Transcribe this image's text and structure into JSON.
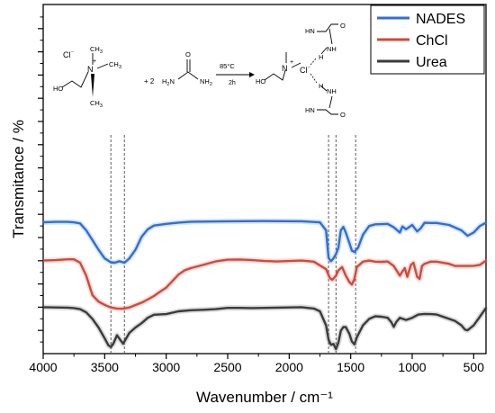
{
  "chart_data": {
    "type": "line",
    "xlabel": "Wavenumber / cm⁻¹",
    "ylabel": "Transmitance / %",
    "xlim": [
      4000,
      400
    ],
    "x_reversed": true,
    "x_ticks": [
      4000,
      3500,
      3000,
      2500,
      2000,
      1500,
      1000,
      500
    ],
    "x_tick_labels": [
      "4000",
      "3500",
      "3000",
      "2500",
      "2000",
      "1500",
      "1000",
      "500"
    ],
    "ylim": [
      0,
      100
    ],
    "y_tick_labels_shown": false,
    "legend_position": "top-right",
    "reference_lines_x": [
      3450,
      3340,
      1680,
      1620,
      1460
    ],
    "series": [
      {
        "name": "NADES",
        "color": "#2f6fd6",
        "points": [
          [
            4000,
            58.7
          ],
          [
            3900,
            58.9
          ],
          [
            3800,
            58.9
          ],
          [
            3750,
            58.7
          ],
          [
            3700,
            58.2
          ],
          [
            3650,
            55.0
          ],
          [
            3600,
            50.5
          ],
          [
            3550,
            46.0
          ],
          [
            3500,
            42.0
          ],
          [
            3450,
            40.2
          ],
          [
            3420,
            40.0
          ],
          [
            3380,
            40.7
          ],
          [
            3340,
            40.0
          ],
          [
            3300,
            42.0
          ],
          [
            3250,
            46.0
          ],
          [
            3200,
            52.0
          ],
          [
            3150,
            55.5
          ],
          [
            3100,
            57.2
          ],
          [
            3000,
            58.0
          ],
          [
            2900,
            58.6
          ],
          [
            2800,
            59.0
          ],
          [
            2500,
            59.2
          ],
          [
            2200,
            59.3
          ],
          [
            1900,
            59.2
          ],
          [
            1750,
            58.7
          ],
          [
            1700,
            55.0
          ],
          [
            1680,
            42.2
          ],
          [
            1660,
            40.7
          ],
          [
            1640,
            42.0
          ],
          [
            1620,
            44.0
          ],
          [
            1600,
            47.0
          ],
          [
            1580,
            55.0
          ],
          [
            1560,
            56.6
          ],
          [
            1540,
            54.0
          ],
          [
            1510,
            49.0
          ],
          [
            1490,
            45.6
          ],
          [
            1470,
            45.0
          ],
          [
            1440,
            47.0
          ],
          [
            1400,
            53.0
          ],
          [
            1350,
            57.0
          ],
          [
            1300,
            57.8
          ],
          [
            1200,
            58.0
          ],
          [
            1150,
            56.4
          ],
          [
            1100,
            54.0
          ],
          [
            1080,
            56.8
          ],
          [
            1050,
            55.5
          ],
          [
            1000,
            57.5
          ],
          [
            960,
            54.5
          ],
          [
            930,
            56.0
          ],
          [
            900,
            58.5
          ],
          [
            850,
            58.4
          ],
          [
            800,
            58.4
          ],
          [
            700,
            57.5
          ],
          [
            600,
            55.0
          ],
          [
            550,
            52.5
          ],
          [
            500,
            54.0
          ],
          [
            450,
            57.0
          ],
          [
            400,
            58.5
          ]
        ]
      },
      {
        "name": "ChCl",
        "color": "#d04a3c",
        "points": [
          [
            4000,
            41.0
          ],
          [
            3900,
            41.2
          ],
          [
            3800,
            41.6
          ],
          [
            3750,
            41.6
          ],
          [
            3700,
            40.0
          ],
          [
            3650,
            34.0
          ],
          [
            3600,
            25.0
          ],
          [
            3550,
            22.0
          ],
          [
            3500,
            20.5
          ],
          [
            3450,
            19.3
          ],
          [
            3400,
            18.8
          ],
          [
            3350,
            18.7
          ],
          [
            3300,
            19.3
          ],
          [
            3250,
            20.4
          ],
          [
            3200,
            21.5
          ],
          [
            3150,
            23.0
          ],
          [
            3100,
            24.6
          ],
          [
            3050,
            26.6
          ],
          [
            3000,
            28.5
          ],
          [
            2950,
            31.5
          ],
          [
            2900,
            34.5
          ],
          [
            2850,
            36.5
          ],
          [
            2800,
            37.5
          ],
          [
            2700,
            39.0
          ],
          [
            2600,
            40.6
          ],
          [
            2500,
            41.4
          ],
          [
            2400,
            41.5
          ],
          [
            2300,
            41.2
          ],
          [
            2200,
            40.8
          ],
          [
            2100,
            40.6
          ],
          [
            2000,
            40.8
          ],
          [
            1900,
            41.0
          ],
          [
            1800,
            40.5
          ],
          [
            1700,
            37.0
          ],
          [
            1670,
            33.0
          ],
          [
            1650,
            32.1
          ],
          [
            1620,
            34.0
          ],
          [
            1600,
            36.5
          ],
          [
            1570,
            38.0
          ],
          [
            1540,
            34.0
          ],
          [
            1510,
            31.0
          ],
          [
            1490,
            29.9
          ],
          [
            1470,
            32.5
          ],
          [
            1450,
            38.0
          ],
          [
            1400,
            40.5
          ],
          [
            1350,
            41.0
          ],
          [
            1300,
            40.5
          ],
          [
            1250,
            40.4
          ],
          [
            1200,
            40.6
          ],
          [
            1150,
            38.5
          ],
          [
            1100,
            34.0
          ],
          [
            1080,
            36.0
          ],
          [
            1060,
            37.5
          ],
          [
            1040,
            33.5
          ],
          [
            1010,
            39.0
          ],
          [
            990,
            40.0
          ],
          [
            960,
            33.5
          ],
          [
            940,
            32.5
          ],
          [
            920,
            38.5
          ],
          [
            900,
            39.5
          ],
          [
            850,
            40.5
          ],
          [
            800,
            40.5
          ],
          [
            700,
            39.5
          ],
          [
            650,
            38.5
          ],
          [
            600,
            38.5
          ],
          [
            550,
            38.5
          ],
          [
            500,
            38.6
          ],
          [
            450,
            39.0
          ],
          [
            400,
            41.0
          ]
        ]
      },
      {
        "name": "Urea",
        "color": "#3b3b3b",
        "points": [
          [
            4000,
            19.4
          ],
          [
            3900,
            19.3
          ],
          [
            3800,
            19.2
          ],
          [
            3750,
            19.0
          ],
          [
            3700,
            18.5
          ],
          [
            3650,
            17.0
          ],
          [
            3600,
            14.0
          ],
          [
            3550,
            10.0
          ],
          [
            3500,
            5.0
          ],
          [
            3470,
            1.8
          ],
          [
            3450,
            1.0
          ],
          [
            3430,
            2.5
          ],
          [
            3400,
            6.4
          ],
          [
            3370,
            4.0
          ],
          [
            3350,
            2.5
          ],
          [
            3330,
            4.5
          ],
          [
            3300,
            7.5
          ],
          [
            3250,
            10.0
          ],
          [
            3200,
            12.0
          ],
          [
            3150,
            14.5
          ],
          [
            3100,
            15.9
          ],
          [
            3000,
            16.2
          ],
          [
            2900,
            17.5
          ],
          [
            2800,
            18.0
          ],
          [
            2700,
            18.2
          ],
          [
            2600,
            18.5
          ],
          [
            2500,
            19.1
          ],
          [
            2400,
            19.1
          ],
          [
            2300,
            19.0
          ],
          [
            2200,
            19.1
          ],
          [
            2000,
            19.3
          ],
          [
            1900,
            19.4
          ],
          [
            1800,
            18.8
          ],
          [
            1750,
            17.5
          ],
          [
            1700,
            11.0
          ],
          [
            1680,
            4.3
          ],
          [
            1660,
            2.0
          ],
          [
            1640,
            2.4
          ],
          [
            1620,
            0.0
          ],
          [
            1600,
            3.0
          ],
          [
            1580,
            8.5
          ],
          [
            1560,
            10.2
          ],
          [
            1540,
            10.2
          ],
          [
            1510,
            7.0
          ],
          [
            1490,
            3.5
          ],
          [
            1470,
            2.2
          ],
          [
            1450,
            5.5
          ],
          [
            1400,
            11.0
          ],
          [
            1350,
            14.0
          ],
          [
            1300,
            15.2
          ],
          [
            1250,
            15.0
          ],
          [
            1200,
            14.5
          ],
          [
            1170,
            12.5
          ],
          [
            1150,
            10.3
          ],
          [
            1130,
            12.5
          ],
          [
            1100,
            14.5
          ],
          [
            1050,
            13.5
          ],
          [
            1000,
            14.5
          ],
          [
            950,
            16.0
          ],
          [
            900,
            16.3
          ],
          [
            850,
            16.2
          ],
          [
            800,
            16.0
          ],
          [
            700,
            14.0
          ],
          [
            650,
            13.0
          ],
          [
            600,
            11.0
          ],
          [
            570,
            9.0
          ],
          [
            550,
            8.7
          ],
          [
            500,
            11.0
          ],
          [
            450,
            15.0
          ],
          [
            400,
            19.1
          ]
        ]
      }
    ]
  },
  "scheme": {
    "reactant1": {
      "counter_ion": "Cl",
      "counter_ion_charge": "⁻",
      "charge": "+",
      "methyl_top": "CH",
      "methyl_right": "CH",
      "methyl_bottom": "CH",
      "subscript": "3",
      "nitrogen": "N",
      "hydroxyl": "HO"
    },
    "reactant2": {
      "coefficient": "+ 2",
      "left_amine": "H",
      "left_amine_sub": "2",
      "left_amine_N": "N",
      "carbonyl_O": "O",
      "right_amine": "NH",
      "right_amine_sub": "2"
    },
    "arrow_top": "85°C",
    "arrow_bottom": "2h",
    "product": {
      "hydroxyl": "HO",
      "nitrogen": "N",
      "charge": "+",
      "chloride": "Cl",
      "charge_minus": "⁻",
      "hbond_H_upper": "H",
      "hbond_H_lower": "H",
      "upper_nh_left": "HN",
      "upper_nh_right": "NH",
      "upper_O": "O",
      "lower_nh_left": "HN",
      "lower_nh_right": "NH",
      "lower_O": "O"
    }
  }
}
